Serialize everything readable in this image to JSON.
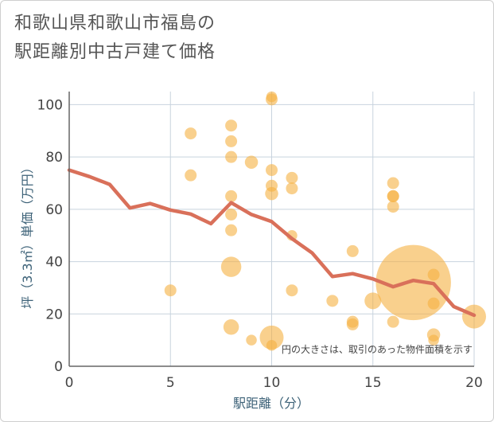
{
  "chart_data": {
    "type": "scatter",
    "title_line1": "和歌山県和歌山市福島の",
    "title_line2": "駅距離別中古戸建て価格",
    "xlabel": "駅距離（分）",
    "ylabel": "坪（3.3㎡）単価（万円）",
    "xlim": [
      0,
      20
    ],
    "ylim": [
      0,
      105
    ],
    "x_ticks": [
      0,
      5,
      10,
      15,
      20
    ],
    "y_ticks": [
      0,
      20,
      40,
      60,
      80,
      100
    ],
    "grid": true,
    "note": "円の大きさは、取引のあった物件面積を示す",
    "colors": {
      "bubble": "#f5b041",
      "line": "#d9705a",
      "grid": "#c8d3de",
      "axis": "#666666"
    },
    "points": [
      {
        "x": 5,
        "y": 29,
        "s": 1
      },
      {
        "x": 6,
        "y": 89,
        "s": 1
      },
      {
        "x": 6,
        "y": 73,
        "s": 1
      },
      {
        "x": 8,
        "y": 92,
        "s": 1
      },
      {
        "x": 8,
        "y": 86,
        "s": 1
      },
      {
        "x": 8,
        "y": 80,
        "s": 1
      },
      {
        "x": 8,
        "y": 65,
        "s": 1
      },
      {
        "x": 8,
        "y": 58,
        "s": 1
      },
      {
        "x": 8,
        "y": 52,
        "s": 1
      },
      {
        "x": 8,
        "y": 38,
        "s": 1.7
      },
      {
        "x": 8,
        "y": 15,
        "s": 1.3
      },
      {
        "x": 9,
        "y": 78,
        "s": 1.1
      },
      {
        "x": 9,
        "y": 10,
        "s": 0.9
      },
      {
        "x": 10,
        "y": 103,
        "s": 0.9
      },
      {
        "x": 10,
        "y": 102,
        "s": 1
      },
      {
        "x": 10,
        "y": 75,
        "s": 1
      },
      {
        "x": 10,
        "y": 69,
        "s": 1
      },
      {
        "x": 10,
        "y": 66,
        "s": 1.1
      },
      {
        "x": 10,
        "y": 11,
        "s": 2
      },
      {
        "x": 10,
        "y": 8,
        "s": 0.9
      },
      {
        "x": 11,
        "y": 72,
        "s": 1
      },
      {
        "x": 11,
        "y": 68,
        "s": 1
      },
      {
        "x": 11,
        "y": 50,
        "s": 0.9
      },
      {
        "x": 11,
        "y": 29,
        "s": 1
      },
      {
        "x": 13,
        "y": 25,
        "s": 1
      },
      {
        "x": 14,
        "y": 44,
        "s": 1
      },
      {
        "x": 14,
        "y": 17,
        "s": 1
      },
      {
        "x": 14,
        "y": 16,
        "s": 1
      },
      {
        "x": 15,
        "y": 25,
        "s": 1.4
      },
      {
        "x": 16,
        "y": 70,
        "s": 1
      },
      {
        "x": 16,
        "y": 65,
        "s": 1
      },
      {
        "x": 16,
        "y": 65,
        "s": 1
      },
      {
        "x": 16,
        "y": 61,
        "s": 1
      },
      {
        "x": 16,
        "y": 17,
        "s": 1
      },
      {
        "x": 17,
        "y": 32,
        "s": 6.3
      },
      {
        "x": 18,
        "y": 35,
        "s": 1
      },
      {
        "x": 18,
        "y": 24,
        "s": 1
      },
      {
        "x": 18,
        "y": 12,
        "s": 1.1
      },
      {
        "x": 18,
        "y": 10,
        "s": 0.9
      },
      {
        "x": 20,
        "y": 19,
        "s": 2
      }
    ],
    "trend": {
      "x": [
        0,
        1,
        2,
        3,
        4,
        5,
        6,
        7,
        8,
        9,
        10,
        11,
        12,
        13,
        14,
        15,
        16,
        17,
        18,
        19,
        20
      ],
      "y": [
        75,
        72.5,
        69.5,
        60.5,
        62.2,
        59.7,
        58.2,
        54.5,
        62.5,
        58,
        55.3,
        48.8,
        43.3,
        34.3,
        35.4,
        33.4,
        30.4,
        32.8,
        31.6,
        22.8,
        19.5
      ]
    }
  }
}
